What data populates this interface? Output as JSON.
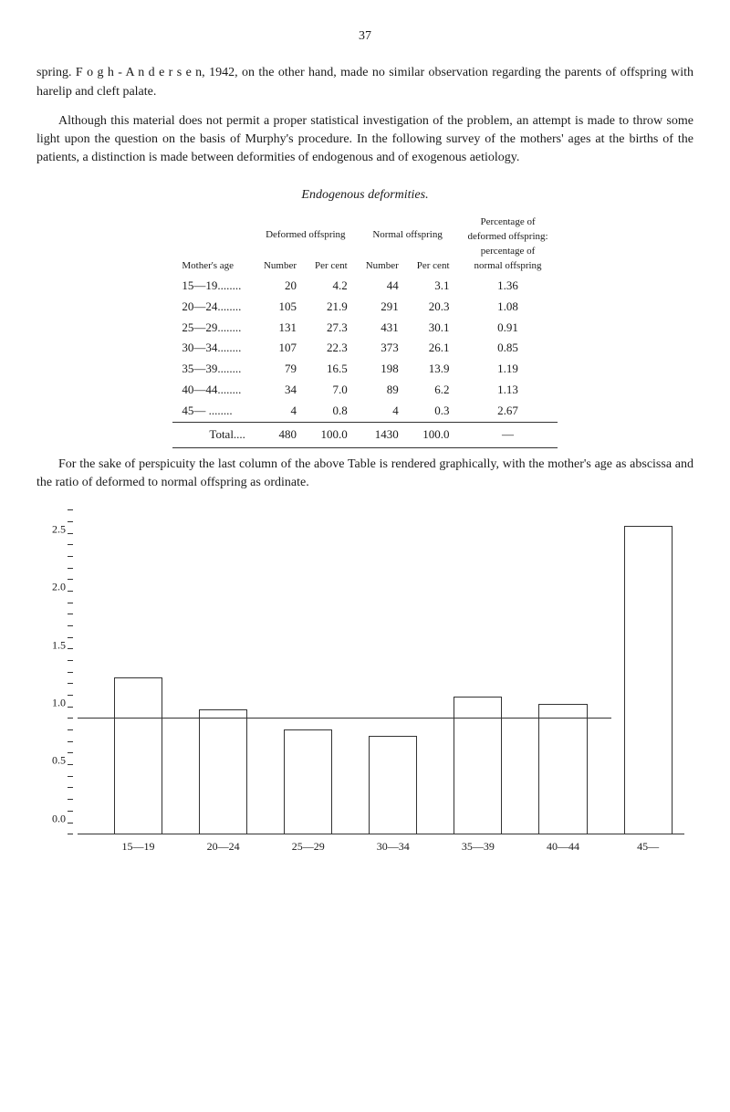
{
  "page_number": "37",
  "para1": "spring. F o g h - A n d e r s e n, 1942, on the other hand, made no similar observa­tion regarding the parents of offspring with harelip and cleft palate.",
  "para2": "Although this material does not permit a proper statistical investigation of the problem, an attempt is made to throw some light upon the question on the basis of Murphy's procedure. In the following survey of the mothers' ages at the births of the patients, a distinction is made between deformities of endogenous and of exogenous aetiology.",
  "table_title": "Endogenous deformities.",
  "headers": {
    "mothers_age": "Mother's age",
    "deformed": "Deformed offspring",
    "normal": "Normal offspring",
    "number": "Number",
    "per_cent": "Per cent",
    "percentage": "Percentage of\ndeformed offspring:\npercentage of\nnormal offspring"
  },
  "rows": [
    {
      "age": "15—19........",
      "dn": "20",
      "dp": "4.2",
      "nn": "44",
      "np": "3.1",
      "pct": "1.36"
    },
    {
      "age": "20—24........",
      "dn": "105",
      "dp": "21.9",
      "nn": "291",
      "np": "20.3",
      "pct": "1.08"
    },
    {
      "age": "25—29........",
      "dn": "131",
      "dp": "27.3",
      "nn": "431",
      "np": "30.1",
      "pct": "0.91"
    },
    {
      "age": "30—34........",
      "dn": "107",
      "dp": "22.3",
      "nn": "373",
      "np": "26.1",
      "pct": "0.85"
    },
    {
      "age": "35—39........",
      "dn": "79",
      "dp": "16.5",
      "nn": "198",
      "np": "13.9",
      "pct": "1.19"
    },
    {
      "age": "40—44........",
      "dn": "34",
      "dp": "7.0",
      "nn": "89",
      "np": "6.2",
      "pct": "1.13"
    },
    {
      "age": "45—   ........",
      "dn": "4",
      "dp": "0.8",
      "nn": "4",
      "np": "0.3",
      "pct": "2.67"
    }
  ],
  "total": {
    "age": "Total....",
    "dn": "480",
    "dp": "100.0",
    "nn": "1430",
    "np": "100.0",
    "pct": "—"
  },
  "para3": "For the sake of perspicuity the last column of the above Table is rendered graphically, with the mother's age as abscissa and the ratio of deformed to normal offspring as ordinate.",
  "chart": {
    "type": "bar",
    "y_ticks": [
      "0.0",
      "0.5",
      "1.0",
      "1.5",
      "2.0",
      "2.5"
    ],
    "ylim_max": 2.8,
    "minor_step": 0.1,
    "bar_color": "transparent",
    "border_color": "#333333",
    "bar_width_pct": 8,
    "baseline_y": 1.0,
    "categories": [
      "15—19",
      "20—24",
      "25—29",
      "30—34",
      "35—39",
      "40—44",
      "45—"
    ],
    "values": [
      1.36,
      1.08,
      0.91,
      0.85,
      1.19,
      1.13,
      2.67
    ],
    "x_positions_pct": [
      10,
      24,
      38,
      52,
      66,
      80,
      94
    ]
  }
}
